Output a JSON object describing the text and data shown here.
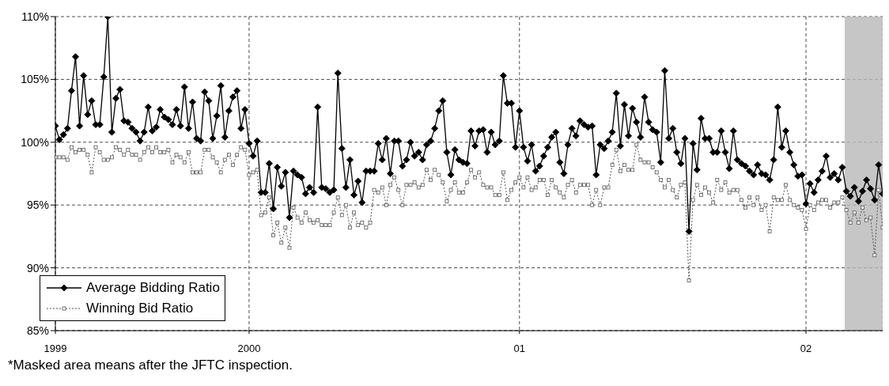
{
  "chart_data": {
    "type": "line",
    "annotations": [
      "*Masked area means after the JFTC inspection."
    ],
    "categories": [
      "1999",
      null,
      null,
      null,
      null,
      null,
      null,
      null,
      null,
      null,
      null,
      null,
      null,
      null,
      null,
      null,
      null,
      null,
      null,
      null,
      null,
      null,
      null,
      null,
      null,
      null,
      null,
      null,
      null,
      null,
      null,
      null,
      null,
      null,
      null,
      null,
      null,
      null,
      null,
      null,
      null,
      null,
      null,
      null,
      null,
      null,
      null,
      null,
      "2000",
      null,
      null,
      null,
      null,
      null,
      null,
      null,
      null,
      null,
      null,
      null,
      null,
      null,
      null,
      null,
      null,
      null,
      null,
      null,
      null,
      null,
      null,
      null,
      null,
      null,
      null,
      null,
      null,
      null,
      null,
      null,
      null,
      null,
      null,
      null,
      null,
      null,
      null,
      null,
      null,
      null,
      null,
      null,
      null,
      null,
      null,
      null,
      null,
      null,
      null,
      null,
      null,
      null,
      null,
      null,
      null,
      null,
      null,
      null,
      null,
      null,
      null,
      null,
      null,
      null,
      null,
      "01",
      null,
      null,
      null,
      null,
      null,
      null,
      null,
      null,
      null,
      null,
      null,
      null,
      null,
      null,
      null,
      null,
      null,
      null,
      null,
      null,
      null,
      null,
      null,
      null,
      null,
      null,
      null,
      null,
      null,
      null,
      null,
      null,
      null,
      null,
      null,
      null,
      null,
      null,
      null,
      null,
      null,
      null,
      null,
      null,
      null,
      null,
      null,
      null,
      null,
      null,
      null,
      null,
      null,
      null,
      null,
      null,
      null,
      null,
      null,
      null,
      null,
      null,
      null,
      null,
      null,
      null,
      null,
      null,
      null,
      null,
      "02",
      null,
      null,
      null,
      null,
      null,
      null,
      null,
      null,
      null,
      null,
      null,
      null,
      null,
      null,
      null,
      null,
      null,
      null,
      null
    ],
    "ylim": [
      85,
      110
    ],
    "yticks": [
      {
        "value": 85,
        "label": "85%"
      },
      {
        "value": 90,
        "label": "90%"
      },
      {
        "value": 95,
        "label": "95%"
      },
      {
        "value": 100,
        "label": "100%"
      },
      {
        "value": 105,
        "label": "105%"
      },
      {
        "value": 110,
        "label": "110%"
      }
    ],
    "grid": true,
    "legend": "bottom left",
    "series": [
      {
        "name": "Average Bidding Ratio",
        "color": "#000000",
        "marker": "diamond",
        "line_style": "solid",
        "values": [
          101.3,
          100.2,
          100.6,
          101.1,
          104.1,
          106.8,
          101.3,
          105.3,
          102.2,
          103.3,
          101.4,
          101.4,
          105.2,
          110,
          100.8,
          103.5,
          104.2,
          101.7,
          101.6,
          101.1,
          100.8,
          100.1,
          100.8,
          102.8,
          100.9,
          101.2,
          102.6,
          102.0,
          101.8,
          101.4,
          102.6,
          101.3,
          104.4,
          101.1,
          103.2,
          100.3,
          100.1,
          104.0,
          103.3,
          100.3,
          102.1,
          104.5,
          100.4,
          102.5,
          103.6,
          104.1,
          101.1,
          102.6,
          99.9,
          98.9,
          100.1,
          96.0,
          96.0,
          98.3,
          94.7,
          98.0,
          96.5,
          97.6,
          94.0,
          97.7,
          97.4,
          97.2,
          95.9,
          96.4,
          96.0,
          102.8,
          96.4,
          96.3,
          96.0,
          96.2,
          105.5,
          99.5,
          96.4,
          98.6,
          95.8,
          96.9,
          95.2,
          97.7,
          97.7,
          97.7,
          99.9,
          98.6,
          100.3,
          97.5,
          100.1,
          100.1,
          98.1,
          98.6,
          100.0,
          98.9,
          99.2,
          98.6,
          99.8,
          100.1,
          101.1,
          102.5,
          103.3,
          99.2,
          97.4,
          99.4,
          98.6,
          98.4,
          98.3,
          100.9,
          99.7,
          100.9,
          101.0,
          99.2,
          100.8,
          99.8,
          100.1,
          105.3,
          103.1,
          103.1,
          99.6,
          102.5,
          99.6,
          98.5,
          99.8,
          97.7,
          98.1,
          98.9,
          99.6,
          100.4,
          100.8,
          98.4,
          97.5,
          99.8,
          101.1,
          100.5,
          101.7,
          101.4,
          101.2,
          101.3,
          97.4,
          99.8,
          99.5,
          100.1,
          100.8,
          103.9,
          99.7,
          103.0,
          100.5,
          102.7,
          101.6,
          100.4,
          103.6,
          101.6,
          101.0,
          100.8,
          98.4,
          105.7,
          100.3,
          101.1,
          99.2,
          98.3,
          100.3,
          92.9,
          99.9,
          97.8,
          101.9,
          100.3,
          100.3,
          99.2,
          99.2,
          100.9,
          99.2,
          97.9,
          100.9,
          98.6,
          98.3,
          98.1,
          97.7,
          97.4,
          98.2,
          97.5,
          97.4,
          97.0,
          98.6,
          102.8,
          99.6,
          100.9,
          99.2,
          98.2,
          97.3,
          97.4,
          95.1,
          96.7,
          96.0,
          97.0,
          97.7,
          98.9,
          97.2,
          97.5,
          97.0,
          98.0,
          96.1,
          95.7,
          96.4,
          95.3,
          96.1,
          97.0,
          96.3,
          95.4,
          98.2,
          95.9
        ]
      },
      {
        "name": "Winning Bid Ratio",
        "color": "#555555",
        "marker": "square",
        "line_style": "dotted",
        "values": [
          98.8,
          98.8,
          98.8,
          98.6,
          99.6,
          99.2,
          99.4,
          99.4,
          99.0,
          97.6,
          99.6,
          99.2,
          98.6,
          98.6,
          98.8,
          99.6,
          99.4,
          99.0,
          99.4,
          99.0,
          99.0,
          98.6,
          99.2,
          99.6,
          99.2,
          99.6,
          99.2,
          99.2,
          99.4,
          98.4,
          99.0,
          98.8,
          98.4,
          99.2,
          97.6,
          97.6,
          97.6,
          99.4,
          99.4,
          98.8,
          98.4,
          97.6,
          98.6,
          99.0,
          98.2,
          99.0,
          99.6,
          99.4,
          97.4,
          97.6,
          97.8,
          94.2,
          94.4,
          95.6,
          92.6,
          93.6,
          92.0,
          93.2,
          91.6,
          94.8,
          94.0,
          93.6,
          94.4,
          93.8,
          93.6,
          93.8,
          93.4,
          93.4,
          93.4,
          94.4,
          95.6,
          94.2,
          95.0,
          93.2,
          94.4,
          93.4,
          93.6,
          93.2,
          93.6,
          96.2,
          96.0,
          96.4,
          95.0,
          96.6,
          97.2,
          96.2,
          95.0,
          96.6,
          96.6,
          96.8,
          96.4,
          96.6,
          97.8,
          97.0,
          97.8,
          97.4,
          96.8,
          95.3,
          96.2,
          96.8,
          96.0,
          96.0,
          96.8,
          97.8,
          97.2,
          97.6,
          96.6,
          96.4,
          96.4,
          95.8,
          95.8,
          97.6,
          95.4,
          96.2,
          96.8,
          97.2,
          96.4,
          97.2,
          96.2,
          96.4,
          97.0,
          97.0,
          95.8,
          97.0,
          96.4,
          96.0,
          95.6,
          96.6,
          97.0,
          96.0,
          96.6,
          96.6,
          96.6,
          95.0,
          96.2,
          95.0,
          96.4,
          96.4,
          98.2,
          99.4,
          97.7,
          98.2,
          97.8,
          97.8,
          99.8,
          98.6,
          98.4,
          98.4,
          98.0,
          97.6,
          97.0,
          96.4,
          97.0,
          96.2,
          95.6,
          96.6,
          96.8,
          89.0,
          95.4,
          96.6,
          95.8,
          96.4,
          96.0,
          95.2,
          97.0,
          96.2,
          96.8,
          96.0,
          96.2,
          96.2,
          95.4,
          94.8,
          95.6,
          95.0,
          95.6,
          94.6,
          95.0,
          92.9,
          95.6,
          95.4,
          95.4,
          96.6,
          95.4,
          95.0,
          94.8,
          94.6,
          93.1,
          95.0,
          94.6,
          95.2,
          95.4,
          95.4,
          94.8,
          95.2,
          95.2,
          95.6,
          94.6,
          93.6,
          94.4,
          93.6,
          94.8,
          93.8,
          94.0,
          91.0,
          96.2,
          93.2
        ]
      }
    ]
  }
}
